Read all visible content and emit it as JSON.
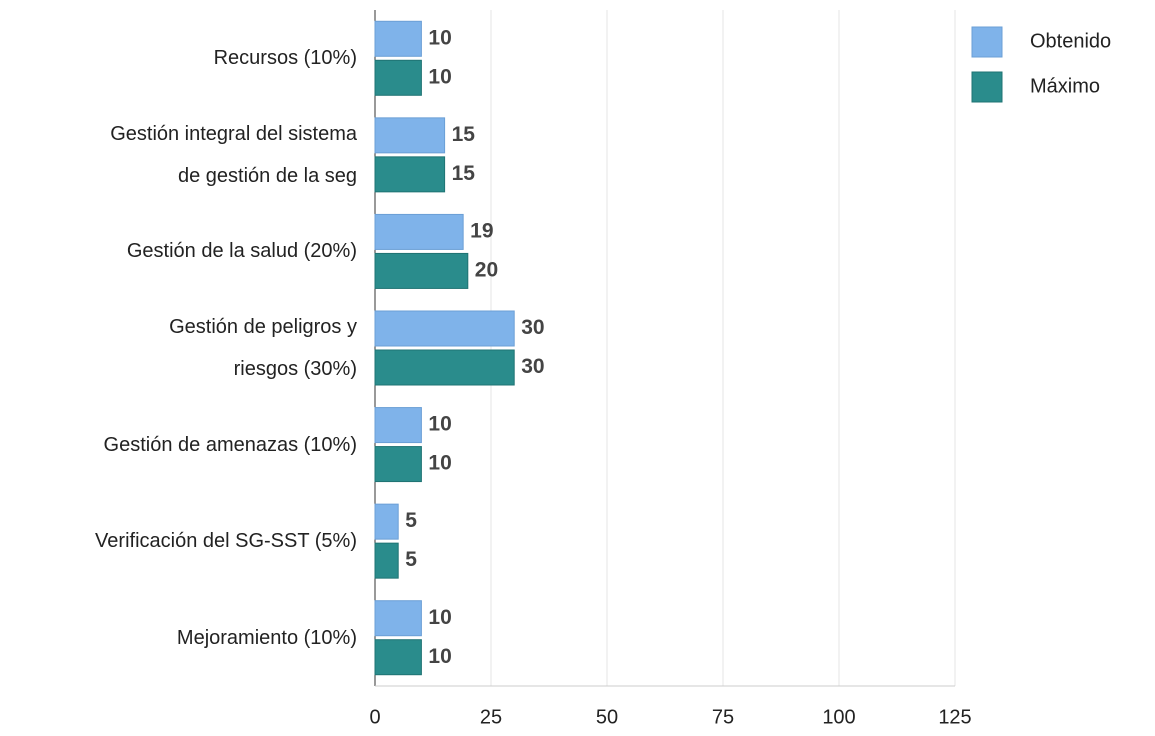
{
  "chart_data": {
    "type": "bar",
    "orientation": "horizontal",
    "categories": [
      "Recursos (10%)",
      "Gestión integral del sistema\nde gestión de la seg",
      "Gestión de la salud (20%)",
      "Gestión de peligros y\nriesgos (30%)",
      "Gestión de amenazas (10%)",
      "Verificación del SG-SST (5%)",
      "Mejoramiento (10%)"
    ],
    "series": [
      {
        "name": "Obtenido",
        "color": "#7fb3ea",
        "values": [
          10,
          15,
          19,
          30,
          10,
          5,
          10
        ]
      },
      {
        "name": "Máximo",
        "color": "#2a8c8c",
        "values": [
          10,
          15,
          20,
          30,
          10,
          5,
          10
        ]
      }
    ],
    "xlim": [
      0,
      125
    ],
    "xticks": [
      0,
      25,
      50,
      75,
      100,
      125
    ],
    "grid": true,
    "legend": "top-right"
  }
}
